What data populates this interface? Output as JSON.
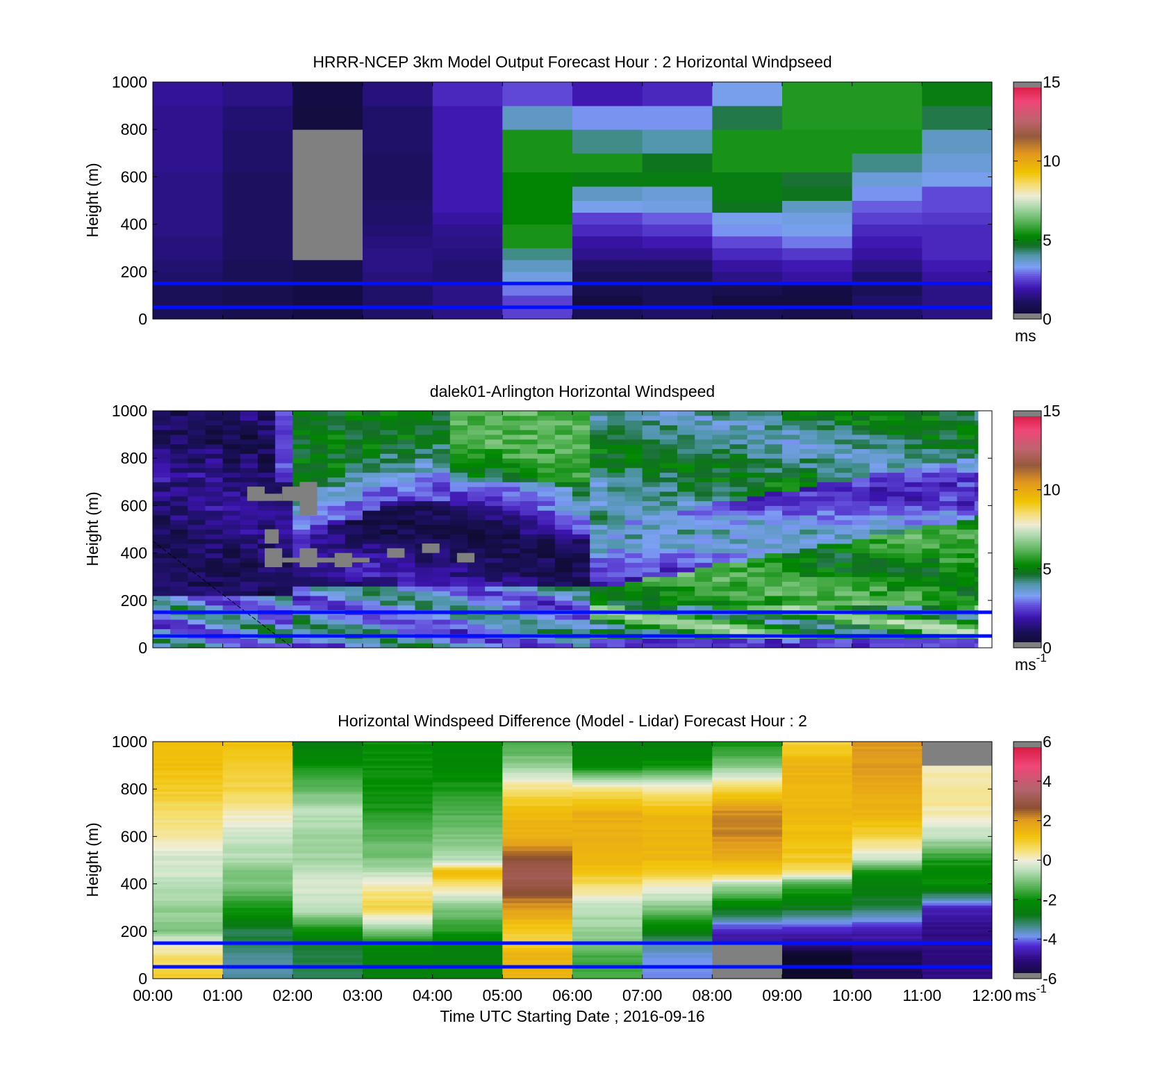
{
  "figure": {
    "xlabel": "Time UTC  Starting Date ; 2016-09-16",
    "x_ticks": [
      "00:00",
      "01:00",
      "02:00",
      "03:00",
      "04:00",
      "05:00",
      "06:00",
      "07:00",
      "08:00",
      "09:00",
      "10:00",
      "11:00",
      "12:00"
    ],
    "reference_heights_m": [
      150,
      50
    ],
    "reference_line_color": "#0010ff",
    "missing_color": "#808080"
  },
  "chart_data": [
    {
      "type": "heatmap",
      "id": "model",
      "title": "HRRR-NCEP 3km Model Output   Forecast Hour : 2 Horizontal Windpseed",
      "ylabel": "Height (m)",
      "xlim": [
        0,
        12
      ],
      "ylim": [
        0,
        1000
      ],
      "y_ticks": [
        "0",
        "200",
        "400",
        "600",
        "800",
        "1000"
      ],
      "colorbar": {
        "min": 0,
        "max": 15,
        "ticks": [
          "0",
          "5",
          "10",
          "15"
        ],
        "unit": "ms"
      },
      "level_bounds_m": [
        0,
        50,
        100,
        150,
        200,
        250,
        300,
        350,
        400,
        450,
        500,
        560,
        620,
        700,
        800,
        900,
        1000
      ],
      "values_ms": [
        [
          1.0,
          0.8,
          0.6,
          1.2,
          1.5,
          2.5,
          1.0,
          1.2,
          1.0,
          0.8,
          1.2,
          1.5
        ],
        [
          1.0,
          0.8,
          0.6,
          1.2,
          1.5,
          2.5,
          0.5,
          1.0,
          0.5,
          0.5,
          1.2,
          1.5
        ],
        [
          1.0,
          0.8,
          0.6,
          1.2,
          1.5,
          3.0,
          0.8,
          1.0,
          0.8,
          0.6,
          1.0,
          1.5
        ],
        [
          1.2,
          1.0,
          0.8,
          1.4,
          1.3,
          3.5,
          1.0,
          1.0,
          1.5,
          1.8,
          1.2,
          1.8
        ],
        [
          1.3,
          1.0,
          0.8,
          1.5,
          1.3,
          3.8,
          1.2,
          1.2,
          1.8,
          2.0,
          1.5,
          2.0
        ],
        [
          1.4,
          1.1,
          null,
          1.5,
          1.4,
          4.2,
          1.6,
          1.6,
          2.2,
          2.4,
          1.8,
          2.2
        ],
        [
          1.4,
          1.1,
          null,
          1.4,
          1.5,
          5.5,
          1.8,
          2.0,
          2.6,
          3.0,
          2.0,
          2.2
        ],
        [
          1.5,
          1.1,
          null,
          1.3,
          1.6,
          5.5,
          2.2,
          2.4,
          3.2,
          3.4,
          2.2,
          2.2
        ],
        [
          1.5,
          1.1,
          null,
          1.2,
          1.8,
          5.2,
          2.5,
          2.8,
          3.4,
          3.5,
          2.5,
          2.4
        ],
        [
          1.5,
          1.1,
          null,
          1.2,
          2.0,
          5.2,
          3.4,
          3.5,
          4.8,
          3.8,
          2.8,
          2.6
        ],
        [
          1.5,
          1.1,
          null,
          1.1,
          2.0,
          5.2,
          3.8,
          3.6,
          5.0,
          4.8,
          3.2,
          2.6
        ],
        [
          1.5,
          1.1,
          null,
          1.1,
          2.0,
          5.2,
          5.0,
          5.0,
          5.0,
          4.6,
          3.6,
          3.4
        ],
        [
          1.6,
          1.2,
          null,
          1.1,
          2.0,
          5.5,
          5.5,
          4.8,
          5.5,
          5.5,
          4.2,
          3.6
        ],
        [
          1.6,
          1.2,
          null,
          1.2,
          2.0,
          5.5,
          4.2,
          4.0,
          5.5,
          5.5,
          5.5,
          3.8
        ],
        [
          1.6,
          1.3,
          0.5,
          1.2,
          2.0,
          3.8,
          3.2,
          3.2,
          4.5,
          5.6,
          5.6,
          4.5
        ],
        [
          1.7,
          1.5,
          0.6,
          1.4,
          2.2,
          2.6,
          2.0,
          2.2,
          3.4,
          5.6,
          5.6,
          5.0
        ]
      ]
    },
    {
      "type": "heatmap",
      "id": "lidar",
      "title": "dalek01-Arlington  Horizontal Windspeed",
      "ylabel": "Height (m)",
      "xlim": [
        0,
        12
      ],
      "ylim": [
        0,
        1000
      ],
      "y_ticks": [
        "0",
        "200",
        "400",
        "600",
        "800",
        "1000"
      ],
      "colorbar": {
        "min": 0,
        "max": 15,
        "ticks": [
          "0",
          "5",
          "10",
          "15"
        ],
        "unit": "ms",
        "unit_exp": "-1"
      },
      "data_end_hour": 11.8,
      "missing_patches": [
        {
          "t0": 1.35,
          "t1": 1.6,
          "h0": 620,
          "h1": 680
        },
        {
          "t0": 1.35,
          "t1": 1.85,
          "h0": 620,
          "h1": 650
        },
        {
          "t0": 1.85,
          "t1": 2.35,
          "h0": 620,
          "h1": 680
        },
        {
          "t0": 2.1,
          "t1": 2.35,
          "h0": 560,
          "h1": 700
        },
        {
          "t0": 1.6,
          "t1": 1.8,
          "h0": 440,
          "h1": 500
        },
        {
          "t0": 1.6,
          "t1": 1.85,
          "h0": 340,
          "h1": 420
        },
        {
          "t0": 1.85,
          "t1": 2.1,
          "h0": 360,
          "h1": 380
        },
        {
          "t0": 2.1,
          "t1": 2.35,
          "h0": 340,
          "h1": 420
        },
        {
          "t0": 2.35,
          "t1": 2.6,
          "h0": 360,
          "h1": 380
        },
        {
          "t0": 2.6,
          "t1": 2.85,
          "h0": 340,
          "h1": 400
        },
        {
          "t0": 2.85,
          "t1": 3.1,
          "h0": 360,
          "h1": 380
        },
        {
          "t0": 3.35,
          "t1": 3.6,
          "h0": 380,
          "h1": 420
        },
        {
          "t0": 3.85,
          "t1": 4.1,
          "h0": 400,
          "h1": 440
        },
        {
          "t0": 4.35,
          "t1": 4.6,
          "h0": 360,
          "h1": 400
        }
      ],
      "diagonal_line": {
        "t0": 0.0,
        "h0": 450,
        "t1": 2.0,
        "h1": 0
      }
    },
    {
      "type": "heatmap",
      "id": "difference",
      "title": "Horizontal Windspeed Difference (Model - Lidar) Forecast Hour : 2",
      "ylabel": "Height (m)",
      "xlim": [
        0,
        12
      ],
      "ylim": [
        0,
        1000
      ],
      "y_ticks": [
        "0",
        "200",
        "400",
        "600",
        "800",
        "1000"
      ],
      "colorbar": {
        "min": -6,
        "max": 6,
        "ticks": [
          "-6",
          "-4",
          "-2",
          "0",
          "2",
          "4",
          "6"
        ],
        "unit": "ms",
        "unit_exp": "-1"
      },
      "profile_heights_m": [
        0,
        100,
        150,
        200,
        300,
        400,
        450,
        500,
        600,
        700,
        800,
        900,
        1000
      ],
      "values_ms": [
        [
          1.0,
          0.5,
          0.0,
          -1.0,
          -0.8,
          -0.5,
          -0.3,
          -0.3,
          0.2,
          0.6,
          1.0,
          1.3,
          1.3
        ],
        [
          -3.5,
          -3.5,
          -3.0,
          -3.0,
          -1.8,
          -1.0,
          -1.0,
          -0.6,
          -0.4,
          0.2,
          0.8,
          1.0,
          1.2
        ],
        [
          -3.0,
          -3.0,
          -2.8,
          -2.0,
          -0.4,
          -0.2,
          -0.5,
          -0.7,
          -0.7,
          -0.5,
          -1.2,
          -2.0,
          -2.6
        ],
        [
          -2.5,
          -2.5,
          -2.0,
          -1.0,
          0.8,
          0.2,
          -0.5,
          -1.0,
          -1.3,
          -1.8,
          -2.0,
          -2.0,
          -2.0
        ],
        [
          -2.5,
          -2.5,
          -2.4,
          -1.8,
          -1.0,
          0.6,
          1.4,
          -0.5,
          -1.0,
          -1.4,
          -1.8,
          -2.2,
          -2.2
        ],
        [
          1.4,
          1.6,
          0.8,
          1.0,
          2.0,
          3.0,
          3.2,
          2.8,
          1.6,
          1.4,
          0.5,
          -0.8,
          -1.6
        ],
        [
          -1.5,
          -1.5,
          -1.0,
          -0.8,
          -0.5,
          0.6,
          1.2,
          1.4,
          1.6,
          1.6,
          0.5,
          -2.2,
          -2.5
        ],
        [
          -3.8,
          -3.8,
          -3.5,
          -2.5,
          -1.0,
          0.2,
          1.0,
          1.4,
          1.5,
          1.4,
          0.2,
          -2.0,
          -2.5
        ],
        [
          null,
          null,
          -4.8,
          -4.5,
          -2.5,
          -0.5,
          1.0,
          1.6,
          2.2,
          2.2,
          0.8,
          -1.0,
          -2.0
        ],
        [
          -6.0,
          -6.0,
          -5.0,
          -4.5,
          -2.8,
          -1.5,
          0.5,
          1.0,
          1.3,
          1.4,
          1.5,
          1.5,
          0.8
        ],
        [
          -5.5,
          -5.5,
          -4.8,
          -4.6,
          -3.0,
          -2.5,
          -2.0,
          -0.5,
          0.8,
          1.5,
          1.7,
          2.0,
          2.0
        ],
        [
          -5.0,
          -5.0,
          -5.0,
          -5.0,
          -4.5,
          -2.0,
          -2.2,
          -1.8,
          -0.5,
          0.2,
          0.4,
          0.2,
          null
        ]
      ]
    }
  ]
}
